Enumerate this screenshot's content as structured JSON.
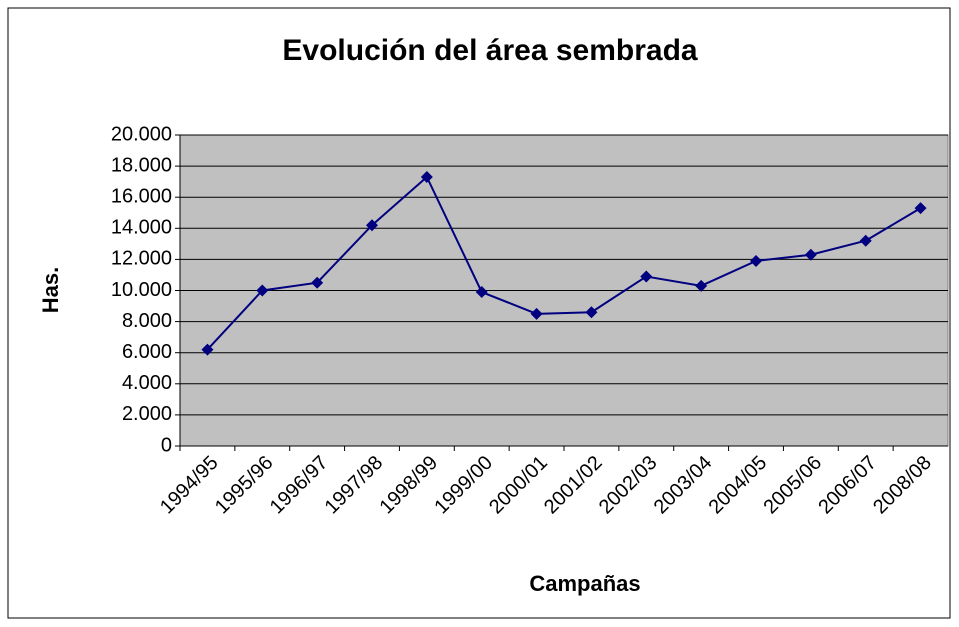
{
  "chart_data": {
    "type": "line",
    "title": "Evolución del área sembrada",
    "x_label": "Campañas",
    "y_label": "Has.",
    "categories": [
      "1994/95",
      "1995/96",
      "1996/97",
      "1997/98",
      "1998/99",
      "1999/00",
      "2000/01",
      "2001/02",
      "2002/03",
      "2003/04",
      "2004/05",
      "2005/06",
      "2006/07",
      "2008/08"
    ],
    "series": [
      {
        "name": "Has.",
        "color": "#000080",
        "values": [
          6200,
          10000,
          10500,
          14200,
          17300,
          9900,
          8500,
          8600,
          10900,
          10300,
          11900,
          12300,
          13200,
          15300
        ]
      }
    ],
    "ylim": [
      0,
      20000
    ],
    "yticks": [
      0,
      {
        "value": 2000,
        "label": "2.000"
      },
      {
        "value": 4000,
        "label": "4.000"
      },
      {
        "value": 6000,
        "label": "6.000"
      },
      {
        "value": 8000,
        "label": "8.000"
      },
      {
        "value": 10000,
        "label": "10.000"
      },
      {
        "value": 12000,
        "label": "12.000"
      },
      {
        "value": 14000,
        "label": "14.000"
      },
      {
        "value": 16000,
        "label": "16.000"
      },
      {
        "value": 18000,
        "label": "18.000"
      },
      {
        "value": 20000,
        "label": "20.000"
      }
    ],
    "grid": true,
    "plot_background": "#c0c0c0"
  }
}
